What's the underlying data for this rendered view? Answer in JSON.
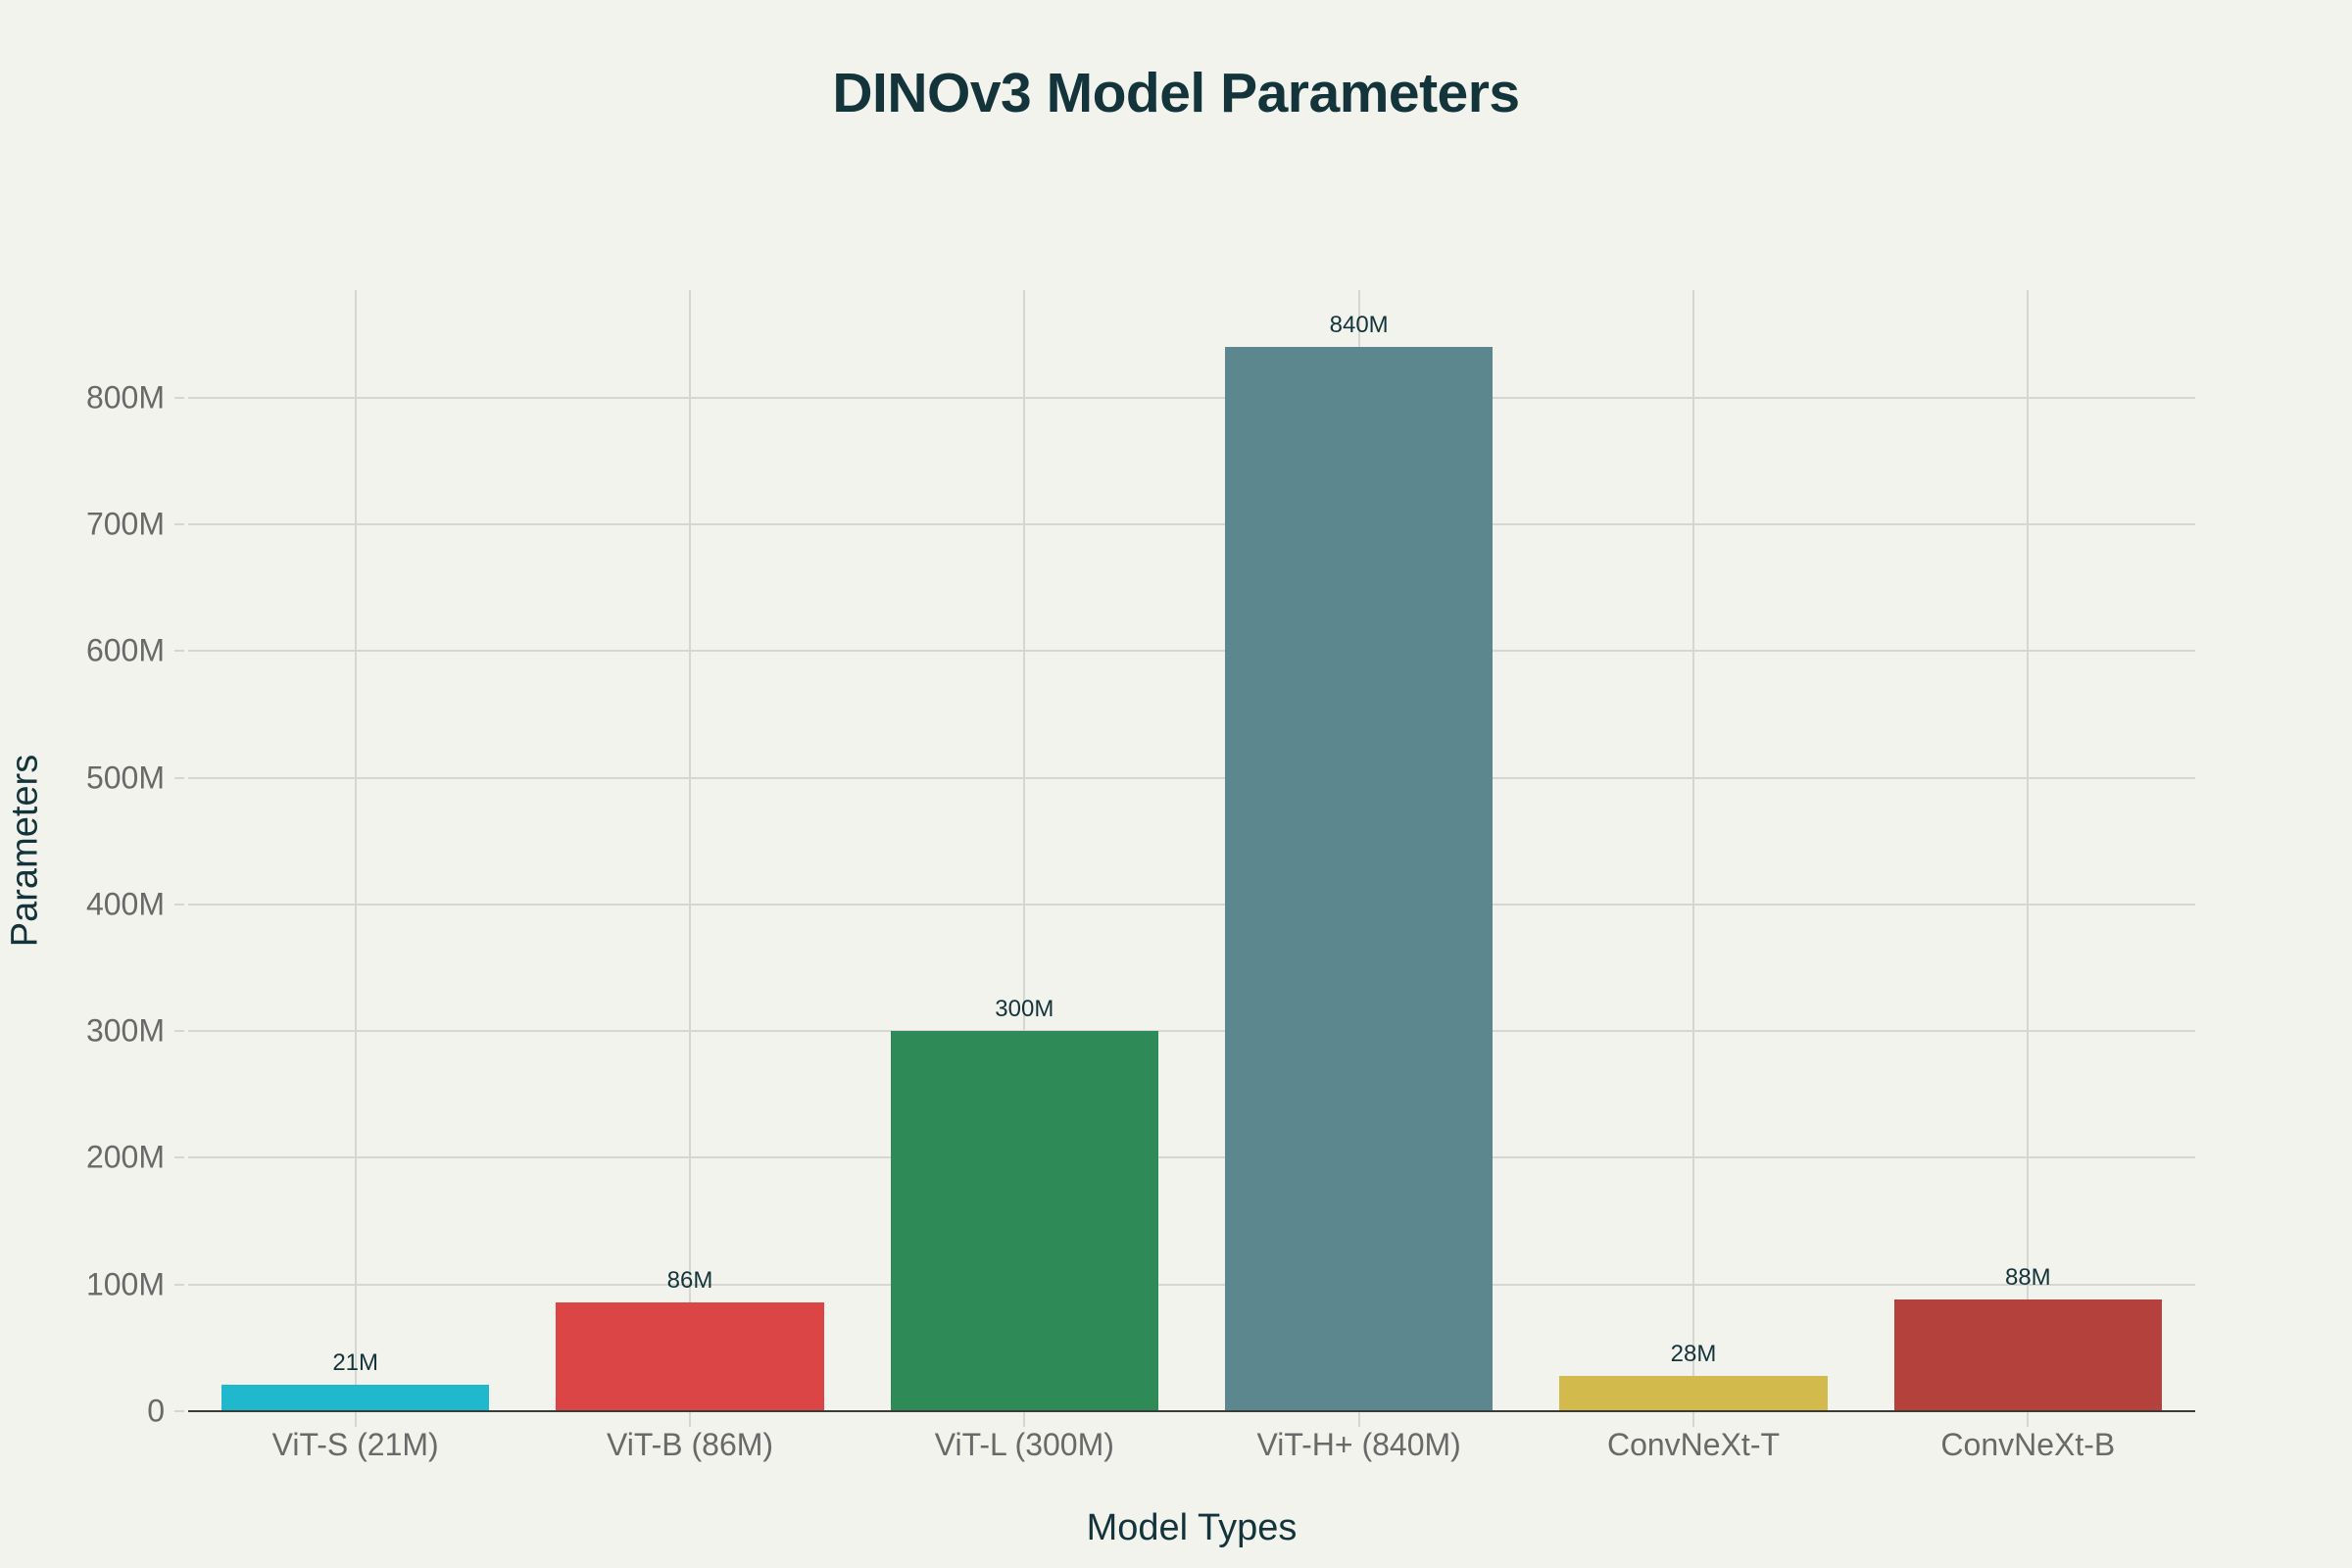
{
  "chart_data": {
    "type": "bar",
    "title": "DINOv3 Model Parameters",
    "xlabel": "Model Types",
    "ylabel": "Parameters",
    "categories": [
      "ViT-S (21M)",
      "ViT-B (86M)",
      "ViT-L (300M)",
      "ViT-H+ (840M)",
      "ConvNeXt-T",
      "ConvNeXt-B"
    ],
    "values": [
      21,
      86,
      300,
      840,
      28,
      88
    ],
    "value_unit": "M",
    "data_labels": [
      "21M",
      "86M",
      "300M",
      "840M",
      "28M",
      "88M"
    ],
    "colors": [
      "#1fb8cd",
      "#db4545",
      "#2e8b57",
      "#5d878f",
      "#d2ba4c",
      "#b4413c"
    ],
    "ylim": [
      0,
      885
    ],
    "yticks": [
      0,
      100,
      200,
      300,
      400,
      500,
      600,
      700,
      800
    ],
    "ytick_labels": [
      "0",
      "100M",
      "200M",
      "300M",
      "400M",
      "500M",
      "600M",
      "700M",
      "800M"
    ],
    "grid": true,
    "legend": null
  },
  "background_color": "#f3f3ee",
  "text_color": "#13343b"
}
